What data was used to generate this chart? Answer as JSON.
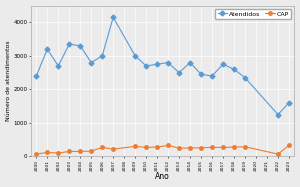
{
  "years": [
    2000,
    2001,
    2002,
    2003,
    2004,
    2005,
    2006,
    2007,
    2009,
    2010,
    2011,
    2012,
    2013,
    2014,
    2015,
    2016,
    2017,
    2018,
    2019,
    2022,
    2023
  ],
  "atendidos": [
    2400,
    3200,
    2700,
    3350,
    3300,
    2800,
    3000,
    4150,
    3000,
    2700,
    2750,
    2800,
    2500,
    2800,
    2450,
    2400,
    2750,
    2600,
    2350,
    1250,
    1600
  ],
  "cap": [
    70,
    120,
    100,
    150,
    150,
    160,
    270,
    220,
    300,
    270,
    280,
    330,
    250,
    250,
    260,
    270,
    270,
    280,
    290,
    70,
    330
  ],
  "color_atendidos": "#5b9bd5",
  "color_cap": "#ed7d31",
  "ylabel": "Número de atendimentos",
  "xlabel": "Ano",
  "ylim": [
    0,
    4500
  ],
  "yticks": [
    0,
    1000,
    2000,
    3000,
    4000
  ],
  "ytick_labels": [
    "0",
    "1000",
    "2000",
    "3000",
    "4000"
  ],
  "background_color": "#ebebeb",
  "grid_color": "#ffffff",
  "legend_labels": [
    "Atendidos",
    "CAP"
  ],
  "all_years_xticks": [
    2000,
    2001,
    2002,
    2003,
    2004,
    2005,
    2006,
    2007,
    2008,
    2009,
    2010,
    2011,
    2012,
    2013,
    2014,
    2015,
    2016,
    2017,
    2018,
    2019,
    2020,
    2021,
    2022,
    2023
  ]
}
